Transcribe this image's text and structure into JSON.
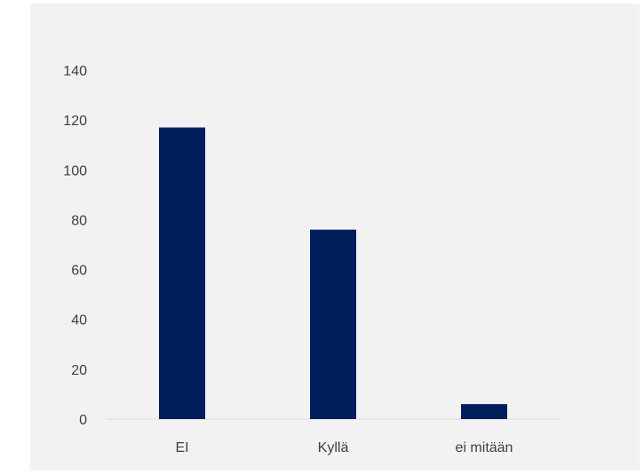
{
  "chart_data": {
    "type": "bar",
    "categories": [
      "EI",
      "Kyllä",
      "ei mitään"
    ],
    "values": [
      117,
      76,
      6
    ],
    "ylim": [
      0,
      140
    ],
    "yticks": [
      0,
      20,
      40,
      60,
      80,
      100,
      120,
      140
    ],
    "grid": false,
    "bar_color": "#001d5c",
    "axis_color": "#d9d9d9",
    "background_color": "#f2f2f2"
  }
}
